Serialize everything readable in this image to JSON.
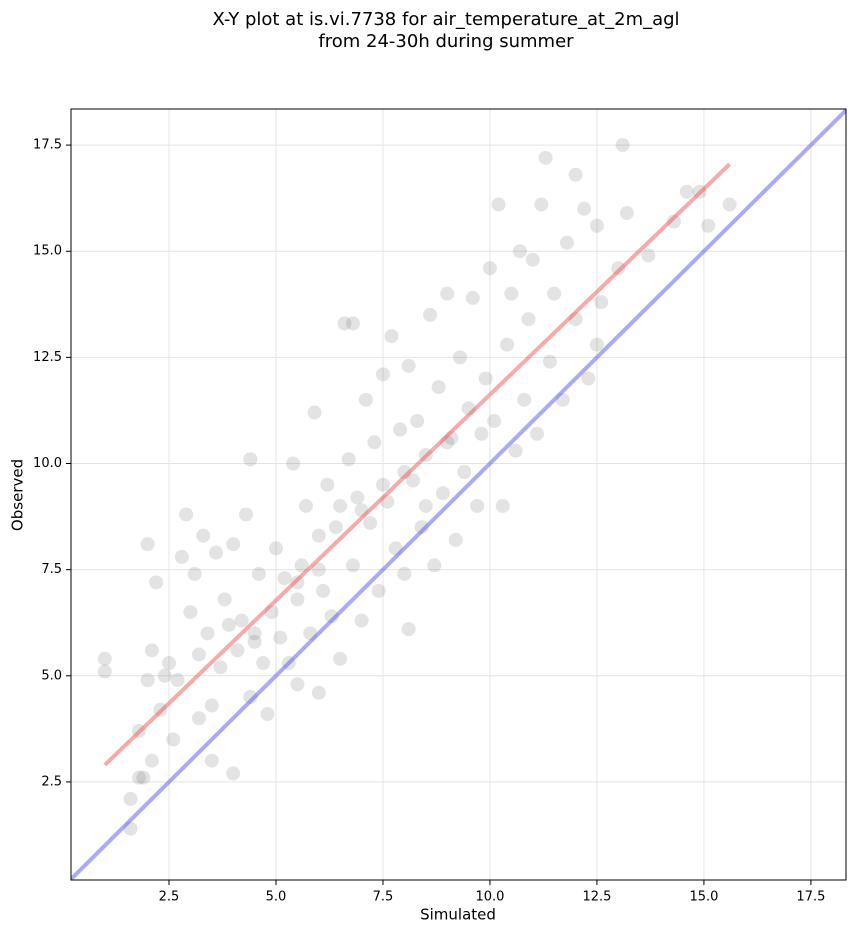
{
  "chart_data": {
    "type": "scatter",
    "title": "X-Y plot at is.vi.7738 for air_temperature_at_2m_agl",
    "subtitle": "from 24-30h during summer",
    "xlabel": "Simulated",
    "ylabel": "Observed",
    "xlim": [
      0.21,
      18.32
    ],
    "ylim": [
      0.19,
      18.35
    ],
    "xticks": [
      2.5,
      {
        "value": 5,
        "label": "5.0"
      },
      7.5,
      {
        "value": 10,
        "label": "10.0"
      },
      12.5,
      {
        "value": 15,
        "label": "15.0"
      },
      17.5
    ],
    "yticks": [
      2.5,
      {
        "value": 5,
        "label": "5.0"
      },
      7.5,
      {
        "value": 10,
        "label": "10.0"
      },
      12.5,
      {
        "value": 15,
        "label": "15.0"
      },
      17.5
    ],
    "grid": true,
    "points": {
      "color": "#404040",
      "x": [
        1.0,
        1.0,
        1.6,
        1.6,
        1.8,
        1.9,
        1.8,
        2.1,
        2.0,
        2.0,
        2.2,
        2.1,
        2.3,
        2.4,
        2.5,
        2.6,
        2.7,
        2.8,
        2.9,
        3.0,
        3.1,
        3.2,
        3.2,
        3.3,
        3.4,
        3.5,
        3.5,
        3.6,
        3.7,
        3.8,
        3.9,
        4.0,
        4.0,
        4.1,
        4.2,
        4.3,
        4.4,
        4.4,
        4.5,
        4.6,
        4.7,
        4.8,
        4.9,
        5.0,
        5.1,
        5.2,
        5.3,
        5.4,
        5.5,
        5.5,
        5.6,
        5.7,
        5.8,
        5.9,
        6.0,
        6.0,
        6.1,
        6.2,
        6.3,
        6.4,
        6.5,
        6.6,
        6.7,
        6.8,
        6.8,
        6.9,
        7.0,
        7.1,
        7.2,
        7.3,
        7.4,
        7.5,
        7.6,
        7.7,
        7.8,
        7.9,
        8.0,
        8.1,
        8.1,
        8.2,
        8.3,
        8.4,
        8.5,
        8.6,
        8.7,
        8.8,
        8.9,
        9.0,
        9.1,
        9.2,
        9.3,
        9.4,
        9.5,
        9.6,
        9.7,
        9.8,
        9.9,
        10.0,
        10.1,
        10.2,
        10.3,
        10.4,
        10.5,
        10.6,
        10.7,
        10.8,
        10.9,
        11.0,
        11.1,
        11.2,
        11.3,
        11.4,
        11.5,
        11.7,
        11.8,
        12.0,
        12.0,
        12.2,
        12.3,
        12.5,
        12.5,
        12.6,
        13.0,
        13.1,
        13.2,
        13.7,
        14.3,
        14.6,
        14.9,
        15.1,
        15.6,
        6.5,
        7.0,
        7.5,
        8.0,
        6.0,
        5.5,
        8.5,
        9.0,
        4.5
      ],
      "y": [
        5.1,
        5.4,
        2.1,
        1.4,
        2.6,
        2.6,
        3.7,
        3.0,
        4.9,
        8.1,
        7.2,
        5.6,
        4.2,
        5.0,
        5.3,
        3.5,
        4.9,
        7.8,
        8.8,
        6.5,
        7.4,
        5.5,
        4.0,
        8.3,
        6.0,
        3.0,
        4.3,
        7.9,
        5.2,
        6.8,
        6.2,
        2.7,
        8.1,
        5.6,
        6.3,
        8.8,
        4.5,
        10.1,
        6.0,
        7.4,
        5.3,
        4.1,
        6.5,
        8.0,
        5.9,
        7.3,
        5.3,
        10.0,
        6.8,
        4.8,
        7.6,
        9.0,
        6.0,
        11.2,
        8.3,
        4.6,
        7.0,
        9.5,
        6.4,
        8.5,
        5.4,
        13.3,
        10.1,
        7.6,
        13.3,
        9.2,
        6.3,
        11.5,
        8.6,
        10.5,
        7.0,
        12.1,
        9.1,
        13.0,
        8.0,
        10.8,
        7.4,
        6.1,
        12.3,
        9.6,
        11.0,
        8.5,
        10.2,
        13.5,
        7.6,
        11.8,
        9.3,
        14.0,
        10.6,
        8.2,
        12.5,
        9.8,
        11.3,
        13.9,
        9.0,
        10.7,
        12.0,
        14.6,
        11.0,
        16.1,
        9.0,
        12.8,
        14.0,
        10.3,
        15.0,
        11.5,
        13.4,
        14.8,
        10.7,
        16.1,
        17.2,
        12.4,
        14.0,
        11.5,
        15.2,
        16.8,
        13.4,
        16.0,
        12.0,
        15.6,
        12.8,
        13.8,
        14.6,
        17.5,
        15.9,
        14.9,
        15.7,
        16.4,
        16.4,
        15.6,
        16.1,
        9.0,
        8.9,
        9.5,
        9.8,
        7.5,
        7.2,
        9.0,
        10.5,
        5.8
      ]
    },
    "lines": [
      {
        "color": "#ee5555",
        "x": [
          1.0,
          15.6
        ],
        "y": [
          2.9,
          17.05
        ]
      },
      {
        "color": "#5555ee",
        "x": [
          0.21,
          18.32
        ],
        "y": [
          0.21,
          18.32
        ]
      }
    ]
  }
}
